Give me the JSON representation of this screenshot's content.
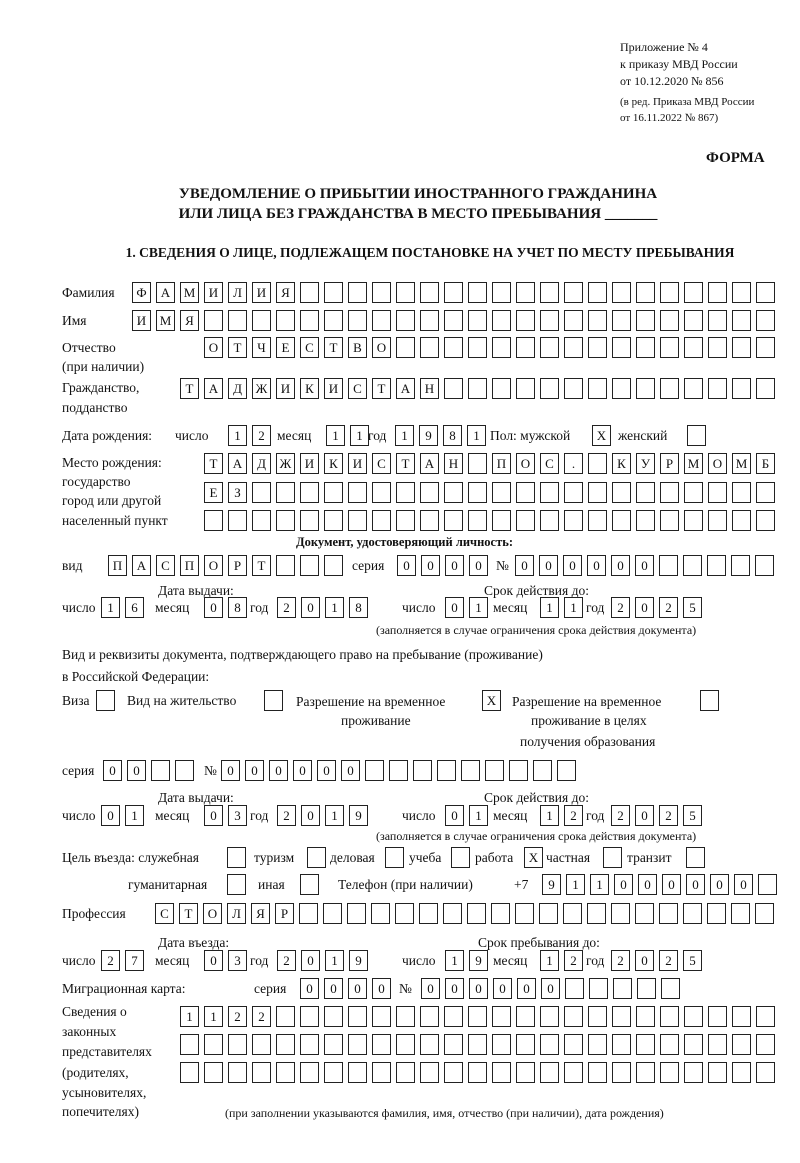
{
  "header": {
    "appendix": "Приложение № 4",
    "order1": "к приказу МВД России",
    "order2": "от 10.12.2020 № 856",
    "edit1": "(в ред. Приказа МВД России",
    "edit2": "от 16.11.2022 № 867)",
    "form": "ФОРМА",
    "title1": "УВЕДОМЛЕНИЕ О ПРИБЫТИИ ИНОСТРАННОГО ГРАЖДАНИНА",
    "title2": "ИЛИ ЛИЦА БЕЗ ГРАЖДАНСТВА В МЕСТО ПРЕБЫВАНИЯ _______",
    "section1": "1. СВЕДЕНИЯ О ЛИЦЕ, ПОДЛЕЖАЩЕМ ПОСТАНОВКЕ НА УЧЕТ ПО МЕСТУ ПРЕБЫВАНИЯ"
  },
  "labels": {
    "surname": "Фамилия",
    "name": "Имя",
    "patronymic": "Отчество",
    "patronymic2": "(при наличии)",
    "citizenship": "Гражданство,",
    "citizenship2": "подданство",
    "birth_date": "Дата рождения:",
    "day": "число",
    "month": "месяц",
    "year": "год",
    "sex": "Пол: мужской",
    "female": "женский",
    "birthplace": "Место рождения:",
    "bp2": "государство",
    "bp3": "город или другой",
    "bp4": "населенный пункт",
    "id_doc": "Документ, удостоверяющий личность:",
    "kind": "вид",
    "series": "серия",
    "number": "№",
    "issue_date": "Дата выдачи:",
    "valid_until": "Срок действия до:",
    "validity_note": "(заполняется в случае ограничения срока действия документа)",
    "right_doc1": "Вид и реквизиты документа, подтверждающего право на пребывание (проживание)",
    "right_doc2": "в Российской Федерации:",
    "visa": "Виза",
    "residence": "Вид на жительство",
    "trp1": "Разрешение на временное",
    "trp2": "проживание",
    "trpe1": "Разрешение на временное",
    "trpe2": "проживание в целях",
    "trpe3": "получения образования",
    "purpose": "Цель въезда: служебная",
    "tourism": "туризм",
    "business": "деловая",
    "study": "учеба",
    "work": "работа",
    "private": "частная",
    "transit": "транзит",
    "humanitarian": "гуманитарная",
    "other": "иная",
    "phone": "Телефон (при наличии)",
    "phone_prefix": "+7",
    "profession": "Профессия",
    "entry_date": "Дата въезда:",
    "stay_until": "Срок пребывания до:",
    "migration_card": "Миграционная карта:",
    "legal1": "Сведения о",
    "legal2": "законных",
    "legal3": "представителях",
    "legal4": "(родителях,",
    "legal5": "усыновителях,",
    "legal6": "попечителях)",
    "legal_note": "(при заполнении указываются фамилия, имя, отчество (при наличии), дата рождения)"
  },
  "fields": {
    "surname": [
      "Ф",
      "А",
      "М",
      "И",
      "Л",
      "И",
      "Я"
    ],
    "name": [
      "И",
      "М",
      "Я"
    ],
    "patronymic": [
      "О",
      "Т",
      "Ч",
      "Е",
      "С",
      "Т",
      "В",
      "О"
    ],
    "citizenship": [
      "Т",
      "А",
      "Д",
      "Ж",
      "И",
      "К",
      "И",
      "С",
      "Т",
      "А",
      "Н"
    ],
    "birth_day": [
      "1",
      "2"
    ],
    "birth_month": [
      "1",
      "1"
    ],
    "birth_year": [
      "1",
      "9",
      "8",
      "1"
    ],
    "sex_male": [
      "X"
    ],
    "sex_female": [
      ""
    ],
    "birthplace1": [
      "Т",
      "А",
      "Д",
      "Ж",
      "И",
      "К",
      "И",
      "С",
      "Т",
      "А",
      "Н",
      "",
      "П",
      "О",
      "С",
      ".",
      "",
      "К",
      "У",
      "Р",
      "М",
      "О",
      "М",
      "Б"
    ],
    "birthplace2": [
      "Е",
      "З"
    ],
    "birthplace3": [],
    "doc_kind": [
      "П",
      "А",
      "С",
      "П",
      "О",
      "Р",
      "Т"
    ],
    "doc_series": [
      "0",
      "0",
      "0",
      "0"
    ],
    "doc_number": [
      "0",
      "0",
      "0",
      "0",
      "0",
      "0"
    ],
    "doc_issue_day": [
      "1",
      "6"
    ],
    "doc_issue_month": [
      "0",
      "8"
    ],
    "doc_issue_year": [
      "2",
      "0",
      "1",
      "8"
    ],
    "doc_valid_day": [
      "0",
      "1"
    ],
    "doc_valid_month": [
      "1",
      "1"
    ],
    "doc_valid_year": [
      "2",
      "0",
      "2",
      "5"
    ],
    "visa": [
      ""
    ],
    "residence": [
      ""
    ],
    "trp": [
      "X"
    ],
    "trpe": [
      ""
    ],
    "right_series": [
      "0",
      "0"
    ],
    "right_number": [
      "0",
      "0",
      "0",
      "0",
      "0",
      "0"
    ],
    "right_issue_day": [
      "0",
      "1"
    ],
    "right_issue_month": [
      "0",
      "3"
    ],
    "right_issue_year": [
      "2",
      "0",
      "1",
      "9"
    ],
    "right_valid_day": [
      "0",
      "1"
    ],
    "right_valid_month": [
      "1",
      "2"
    ],
    "right_valid_year": [
      "2",
      "0",
      "2",
      "5"
    ],
    "p_service": [
      ""
    ],
    "p_tourism": [
      ""
    ],
    "p_business": [
      ""
    ],
    "p_study": [
      ""
    ],
    "p_work": [
      "X"
    ],
    "p_private": [
      ""
    ],
    "p_transit": [
      ""
    ],
    "p_humanitarian": [
      ""
    ],
    "p_other": [
      ""
    ],
    "phone": [
      "9",
      "1",
      "1",
      "0",
      "0",
      "0",
      "0",
      "0",
      "0"
    ],
    "profession": [
      "С",
      "Т",
      "О",
      "Л",
      "Я",
      "Р"
    ],
    "entry_day": [
      "2",
      "7"
    ],
    "entry_month": [
      "0",
      "3"
    ],
    "entry_year": [
      "2",
      "0",
      "1",
      "9"
    ],
    "stay_day": [
      "1",
      "9"
    ],
    "stay_month": [
      "1",
      "2"
    ],
    "stay_year": [
      "2",
      "0",
      "2",
      "5"
    ],
    "mig_series": [
      "0",
      "0",
      "0",
      "0"
    ],
    "mig_number": [
      "0",
      "0",
      "0",
      "0",
      "0",
      "0"
    ],
    "legal1": [
      "1",
      "1",
      "2",
      "2"
    ],
    "legal2": [],
    "legal3": []
  }
}
